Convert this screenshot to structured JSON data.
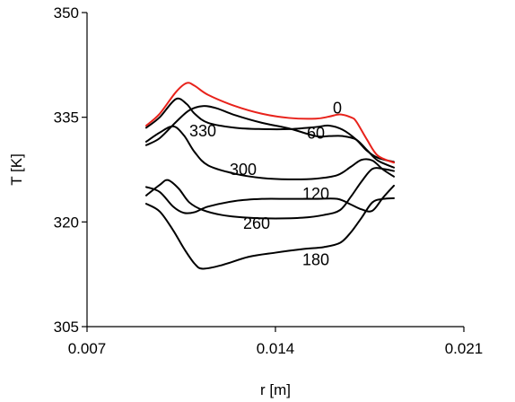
{
  "chart_data": {
    "type": "line",
    "title": "",
    "xlabel": "r  [m]",
    "ylabel": "T  [K]",
    "xlim": [
      0.007,
      0.021
    ],
    "ylim": [
      305,
      350
    ],
    "xticks": [
      "0.007",
      "0.014",
      "0.021"
    ],
    "yticks": [
      "305",
      "320",
      "335",
      "350"
    ],
    "grid": false,
    "legend": "none",
    "series": [
      {
        "label": "0",
        "color": "#e8221b",
        "x": [
          0.0092,
          0.0097,
          0.0103,
          0.0107,
          0.011,
          0.0115,
          0.0125,
          0.0135,
          0.0145,
          0.0155,
          0.016,
          0.0164,
          0.0168,
          0.017,
          0.0174,
          0.0178,
          0.0184
        ],
        "y": [
          333.8,
          335.5,
          338.6,
          339.9,
          339.5,
          338.2,
          336.6,
          335.5,
          334.9,
          334.8,
          335.1,
          335.4,
          335.0,
          334.4,
          331.8,
          329.5,
          328.5
        ]
      },
      {
        "label": "60",
        "color": "#000000",
        "x": [
          0.0092,
          0.0097,
          0.0103,
          0.0107,
          0.011,
          0.0115,
          0.0125,
          0.0135,
          0.0145,
          0.0155,
          0.016,
          0.0165,
          0.017,
          0.0174,
          0.0178,
          0.0184
        ],
        "y": [
          333.5,
          335.0,
          337.6,
          336.9,
          335.5,
          334.2,
          333.5,
          333.3,
          333.3,
          333.6,
          333.8,
          333.2,
          331.8,
          330.2,
          329.2,
          328.6
        ]
      },
      {
        "label": "330",
        "color": "#000000",
        "x": [
          0.0092,
          0.0097,
          0.0103,
          0.0108,
          0.0113,
          0.0118,
          0.0125,
          0.0135,
          0.0145,
          0.0155,
          0.016,
          0.0165,
          0.017,
          0.0174,
          0.0178,
          0.0184
        ],
        "y": [
          331.0,
          332.0,
          334.3,
          336.0,
          336.6,
          336.3,
          335.3,
          334.2,
          333.4,
          332.3,
          332.3,
          332.3,
          331.8,
          330.3,
          328.8,
          327.8
        ]
      },
      {
        "label": "300",
        "color": "#000000",
        "x": [
          0.0092,
          0.0097,
          0.0102,
          0.0106,
          0.011,
          0.0115,
          0.0125,
          0.0135,
          0.0145,
          0.0155,
          0.0163,
          0.0168,
          0.0172,
          0.0176,
          0.018,
          0.0184
        ],
        "y": [
          331.5,
          332.8,
          333.7,
          332.4,
          330.0,
          328.1,
          326.9,
          326.3,
          326.1,
          326.2,
          326.7,
          327.9,
          328.9,
          328.8,
          327.5,
          326.5
        ]
      },
      {
        "label": "120",
        "color": "#000000",
        "x": [
          0.0092,
          0.0097,
          0.0102,
          0.0106,
          0.011,
          0.0115,
          0.0125,
          0.0135,
          0.0145,
          0.0155,
          0.0163,
          0.0168,
          0.0172,
          0.0176,
          0.018,
          0.0184
        ],
        "y": [
          325.0,
          324.3,
          322.2,
          321.3,
          321.4,
          322.2,
          323.0,
          323.3,
          323.3,
          323.3,
          323.3,
          322.5,
          321.8,
          321.6,
          323.5,
          325.2
        ]
      },
      {
        "label": "260",
        "color": "#000000",
        "x": [
          0.0092,
          0.0097,
          0.01,
          0.0104,
          0.0108,
          0.0113,
          0.012,
          0.013,
          0.014,
          0.015,
          0.0158,
          0.0164,
          0.0168,
          0.0172,
          0.0176,
          0.018,
          0.0184
        ],
        "y": [
          323.8,
          325.3,
          326.0,
          324.8,
          322.8,
          321.7,
          321.0,
          320.6,
          320.5,
          320.6,
          321.0,
          321.7,
          323.6,
          325.8,
          327.6,
          327.6,
          327.3
        ]
      },
      {
        "label": "180",
        "color": "#000000",
        "x": [
          0.0092,
          0.0097,
          0.0102,
          0.0106,
          0.011,
          0.0113,
          0.012,
          0.013,
          0.014,
          0.015,
          0.0158,
          0.0164,
          0.0168,
          0.0172,
          0.0176,
          0.018,
          0.0184
        ],
        "y": [
          322.6,
          321.5,
          318.8,
          316.2,
          314.0,
          313.3,
          313.8,
          315.0,
          315.6,
          316.1,
          316.4,
          317.0,
          318.5,
          320.6,
          322.8,
          323.3,
          323.4
        ]
      }
    ],
    "annotations": [
      {
        "text": "0",
        "x": 0.0163,
        "y": 336.3
      },
      {
        "text": "60",
        "x": 0.0155,
        "y": 332.7
      },
      {
        "text": "330",
        "x": 0.0113,
        "y": 333.0
      },
      {
        "text": "300",
        "x": 0.0128,
        "y": 327.5
      },
      {
        "text": "120",
        "x": 0.0155,
        "y": 324.0
      },
      {
        "text": "260",
        "x": 0.0133,
        "y": 319.8
      },
      {
        "text": "180",
        "x": 0.0155,
        "y": 314.6
      }
    ]
  }
}
